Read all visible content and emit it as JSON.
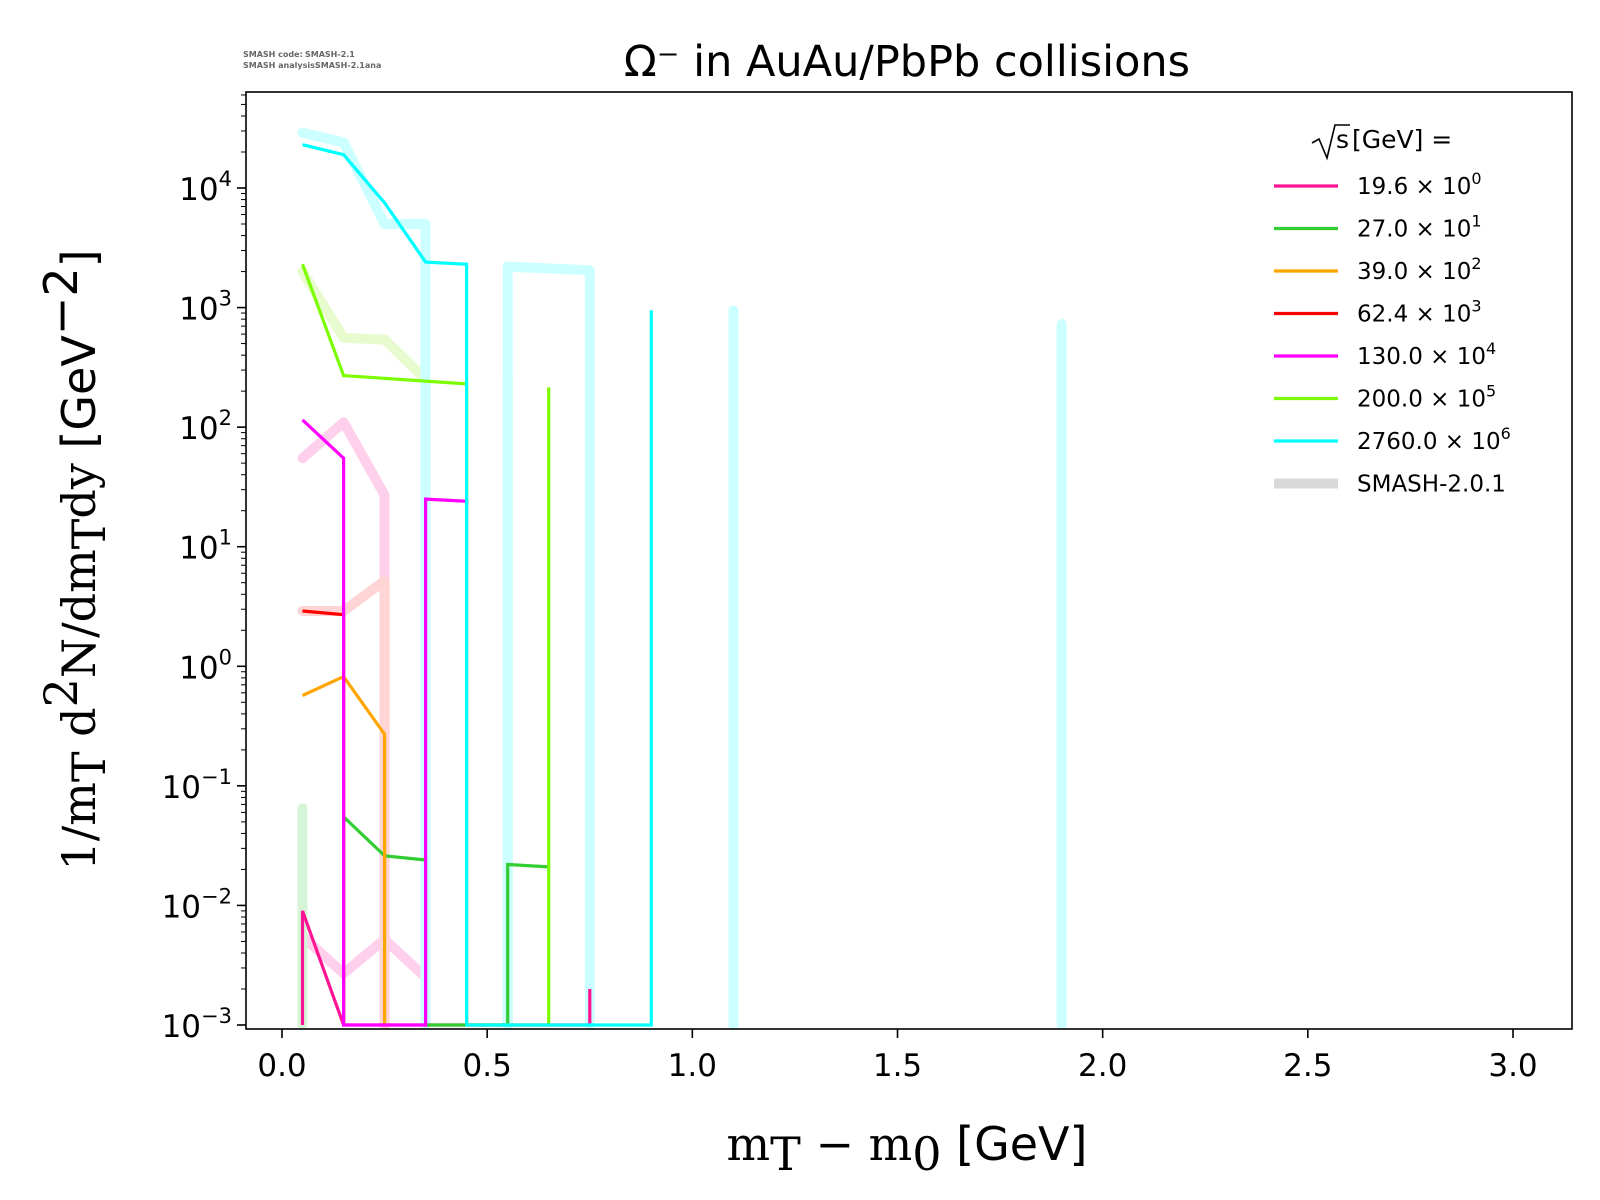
{
  "info": {
    "code_label": "SMASH code:",
    "code_value": "SMASH-2.1",
    "analysis_label": "SMASH analysis:",
    "analysis_value": "SMASH-2.1ana"
  },
  "chart_data": {
    "type": "line",
    "title": "Ω⁻ in AuAu/PbPb collisions",
    "xlabel": {
      "math": "m",
      "sub1": "T",
      "mid": " − m",
      "sub2": "0",
      "unit": " [GeV]"
    },
    "ylabel": {
      "p1": "1/m",
      "s1": "T",
      "p2": " d",
      "sup": "2",
      "p3": "N/dm",
      "s2": "T",
      "p4": "dy",
      "unit": " [GeV",
      "usup": "−2",
      "uend": "]"
    },
    "xlim": [
      -0.08,
      3.15
    ],
    "ylim": [
      -3,
      4.8
    ],
    "y_scale": "log",
    "x_ticks": [
      {
        "v": 0.0,
        "label": "0.0"
      },
      {
        "v": 0.5,
        "label": "0.5"
      },
      {
        "v": 1.0,
        "label": "1.0"
      },
      {
        "v": 1.5,
        "label": "1.5"
      },
      {
        "v": 2.0,
        "label": "2.0"
      },
      {
        "v": 2.5,
        "label": "2.5"
      },
      {
        "v": 3.0,
        "label": "3.0"
      }
    ],
    "y_ticks": [
      {
        "e": -3,
        "base": "10",
        "exp": "−3"
      },
      {
        "e": -2,
        "base": "10",
        "exp": "−2"
      },
      {
        "e": -1,
        "base": "10",
        "exp": "−1"
      },
      {
        "e": 0,
        "base": "10",
        "exp": "0"
      },
      {
        "e": 1,
        "base": "10",
        "exp": "1"
      },
      {
        "e": 2,
        "base": "10",
        "exp": "2"
      },
      {
        "e": 3,
        "base": "10",
        "exp": "3"
      },
      {
        "e": 4,
        "base": "10",
        "exp": "4"
      }
    ],
    "legend": {
      "position": "upper right",
      "title_sqrt": "s",
      "title_rest": "  [GeV] ="
    },
    "series": [
      {
        "name": "19.6 × 10",
        "exp": "0",
        "color": "#ff1493",
        "x": [
          0.05,
          0.05,
          0.15,
          0.15,
          0.25,
          0.25,
          0.35,
          0.35,
          0.45,
          0.45,
          0.75,
          0.75
        ],
        "y": [
          0.001,
          0.009,
          0.001,
          0.001,
          0.001,
          0.001,
          0.001,
          0.001,
          0.001,
          0.001,
          0.001,
          0.002
        ]
      },
      {
        "name": "27.0 × 10",
        "exp": "1",
        "color": "#32cd32",
        "x": [
          0.15,
          0.15,
          0.25,
          0.35,
          0.35,
          0.55,
          0.55,
          0.65
        ],
        "y": [
          0.001,
          0.055,
          0.026,
          0.024,
          0.001,
          0.001,
          0.022,
          0.021
        ]
      },
      {
        "name": "39.0 × 10",
        "exp": "2",
        "color": "#ffa500",
        "x": [
          0.05,
          0.15,
          0.25,
          0.25
        ],
        "y": [
          0.57,
          0.82,
          0.27,
          0.001
        ]
      },
      {
        "name": "62.4 × 10",
        "exp": "3",
        "color": "#ff0000",
        "x": [
          0.05,
          0.15,
          0.15
        ],
        "y": [
          2.9,
          2.7,
          0.001
        ]
      },
      {
        "name": "130.0 × 10",
        "exp": "4",
        "color": "#ff00ff",
        "x": [
          0.05,
          0.15,
          0.15,
          0.35,
          0.35,
          0.45,
          0.45
        ],
        "y": [
          115,
          55,
          0.001,
          0.001,
          25,
          24,
          0.001
        ]
      },
      {
        "name": "200.0 × 10",
        "exp": "5",
        "color": "#7cfc00",
        "x": [
          0.05,
          0.15,
          0.45,
          0.45,
          0.65,
          0.65
        ],
        "y": [
          2300,
          270,
          230,
          0.001,
          0.001,
          215
        ]
      },
      {
        "name": "2760.0 × 10",
        "exp": "6",
        "color": "#00ffff",
        "x": [
          0.05,
          0.15,
          0.25,
          0.35,
          0.45,
          0.45,
          0.9,
          0.9
        ],
        "y": [
          23000,
          19000,
          7500,
          2400,
          2300,
          0.001,
          0.001,
          950
        ]
      },
      {
        "name": "SMASH-2.0.1",
        "exp": "",
        "color": "#d9d9d9",
        "reference": true
      }
    ],
    "reference_series": [
      {
        "color": "#ffd0ec",
        "x": [
          0.05,
          0.15,
          0.25,
          0.35
        ],
        "y": [
          0.0055,
          0.0027,
          0.0052,
          0.0025
        ]
      },
      {
        "color": "#ffd0ec",
        "x": [
          0.05,
          0.15,
          0.25,
          0.25
        ],
        "y": [
          55,
          110,
          27,
          0.001
        ]
      },
      {
        "color": "#ffd4d4",
        "x": [
          0.05,
          0.15,
          0.25,
          0.25
        ],
        "y": [
          2.9,
          2.9,
          5.2,
          0.001
        ]
      },
      {
        "color": "#d6f5d6",
        "x": [
          0.05,
          0.05
        ],
        "y": [
          0.001,
          0.065
        ]
      },
      {
        "color": "#e8fbcf",
        "x": [
          0.05,
          0.15,
          0.25,
          0.35,
          0.35
        ],
        "y": [
          2000,
          560,
          540,
          250,
          0.001
        ]
      },
      {
        "color": "#d6f5d6",
        "x": [
          0.55,
          0.55
        ],
        "y": [
          0.001,
          240
        ]
      },
      {
        "color": "#ccffff",
        "x": [
          0.05,
          0.15,
          0.25,
          0.35,
          0.35
        ],
        "y": [
          29000,
          24000,
          5000,
          5000,
          0.001
        ]
      },
      {
        "color": "#ccffff",
        "x": [
          0.55,
          0.55,
          0.75,
          0.75
        ],
        "y": [
          0.001,
          2200,
          2050,
          0.001
        ]
      },
      {
        "color": "#ccffff",
        "x": [
          1.1,
          1.1
        ],
        "y": [
          0.001,
          950
        ]
      },
      {
        "color": "#ccffff",
        "x": [
          1.9,
          1.9
        ],
        "y": [
          0.001,
          730
        ]
      }
    ]
  }
}
